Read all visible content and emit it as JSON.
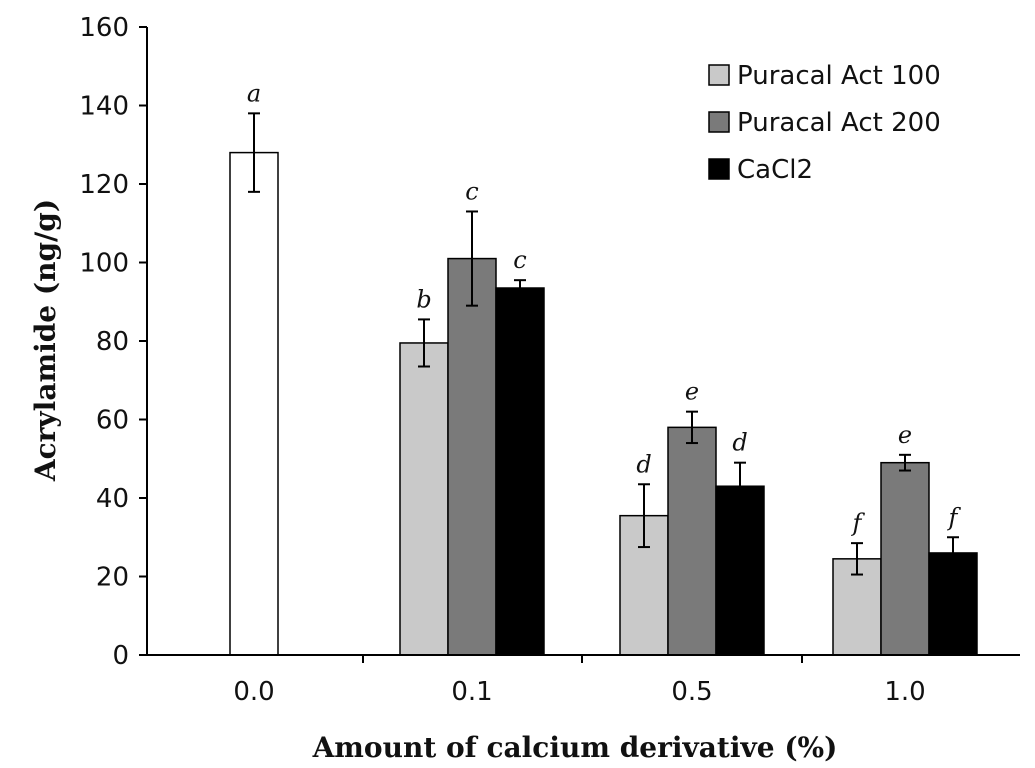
{
  "chart_data": {
    "type": "bar",
    "xlabel": "Amount of calcium derivative (%)",
    "ylabel": "Acrylamide (ng/g)",
    "ylim": [
      0,
      160
    ],
    "yticks": [
      0,
      20,
      40,
      60,
      80,
      100,
      120,
      140,
      160
    ],
    "categories": [
      "0.0",
      "0.1",
      "0.5",
      "1.0"
    ],
    "grid": false,
    "legend_position": "top-right",
    "control": {
      "category": "0.0",
      "value": 128,
      "error": 10,
      "letter": "a",
      "color": "#ffffff"
    },
    "series": [
      {
        "name": "Puracal Act 100",
        "color": "#c9c9c9",
        "values": [
          null,
          79.5,
          35.5,
          24.5
        ],
        "errors": [
          null,
          6,
          8,
          4
        ],
        "letters": [
          null,
          "b",
          "d",
          "f"
        ]
      },
      {
        "name": "Puracal Act 200",
        "color": "#7a7a7a",
        "values": [
          null,
          101,
          58,
          49
        ],
        "errors": [
          null,
          12,
          4,
          2
        ],
        "letters": [
          null,
          "c",
          "e",
          "e"
        ]
      },
      {
        "name": "CaCl2",
        "color": "#000000",
        "values": [
          null,
          93.5,
          43,
          26
        ],
        "errors": [
          null,
          2,
          6,
          4
        ],
        "letters": [
          null,
          "c",
          "d",
          "f"
        ]
      }
    ]
  }
}
